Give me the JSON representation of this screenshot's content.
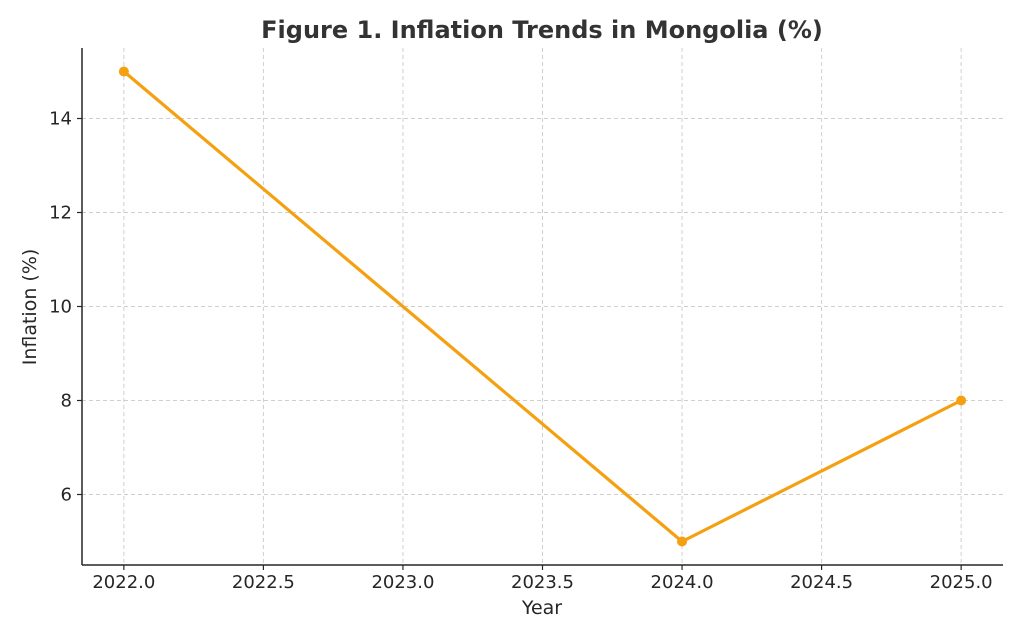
{
  "chart_data": {
    "type": "line",
    "title": "Figure 1. Inflation Trends in Mongolia (%)",
    "xlabel": "Year",
    "ylabel": "Inflation (%)",
    "x_ticks": [
      "2022.0",
      "2022.5",
      "2023.0",
      "2023.5",
      "2024.0",
      "2024.5",
      "2025.0"
    ],
    "y_ticks": [
      "6",
      "8",
      "10",
      "12",
      "14"
    ],
    "xlim": [
      2021.85,
      2025.15
    ],
    "ylim": [
      4.5,
      15.5
    ],
    "grid": true,
    "series": [
      {
        "color": "#f5a010",
        "x": [
          2022,
          2024,
          2025
        ],
        "y": [
          15,
          5,
          8
        ]
      }
    ]
  }
}
